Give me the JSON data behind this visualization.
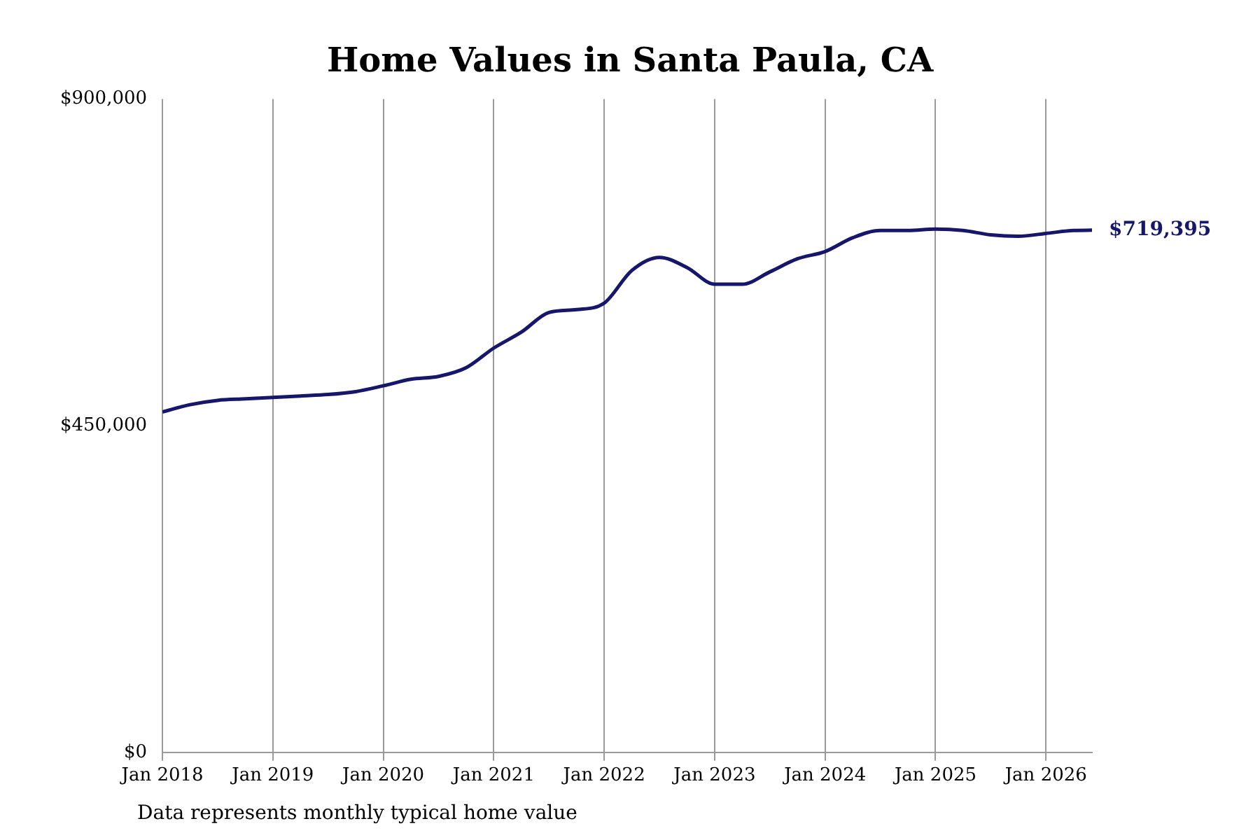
{
  "chart_data": {
    "type": "line",
    "title": "Home Values in Santa Paula, CA",
    "x": [
      "2018-01",
      "2018-04",
      "2018-07",
      "2018-10",
      "2019-01",
      "2019-04",
      "2019-07",
      "2019-10",
      "2020-01",
      "2020-04",
      "2020-07",
      "2020-10",
      "2021-01",
      "2021-04",
      "2021-07",
      "2021-10",
      "2022-01",
      "2022-04",
      "2022-07",
      "2022-10",
      "2023-01",
      "2023-04",
      "2023-07",
      "2023-10",
      "2024-01",
      "2024-04",
      "2024-07",
      "2024-10",
      "2025-01",
      "2025-04",
      "2025-07",
      "2025-10",
      "2026-01",
      "2026-04",
      "2026-06"
    ],
    "series": [
      {
        "color": "#16166b",
        "values": [
          469000,
          479000,
          485000,
          487000,
          489000,
          491000,
          493000,
          497000,
          505000,
          514000,
          518000,
          530000,
          557000,
          579000,
          606000,
          610000,
          619000,
          664000,
          682000,
          668000,
          645000,
          645000,
          662000,
          680000,
          690000,
          709000,
          719000,
          719000,
          721000,
          719000,
          713000,
          711000,
          715000,
          719000,
          719395
        ]
      }
    ],
    "xticks": [
      {
        "value": "2018-01",
        "label": "Jan 2018"
      },
      {
        "value": "2019-01",
        "label": "Jan 2019"
      },
      {
        "value": "2020-01",
        "label": "Jan 2020"
      },
      {
        "value": "2021-01",
        "label": "Jan 2021"
      },
      {
        "value": "2022-01",
        "label": "Jan 2022"
      },
      {
        "value": "2023-01",
        "label": "Jan 2023"
      },
      {
        "value": "2024-01",
        "label": "Jan 2024"
      },
      {
        "value": "2025-01",
        "label": "Jan 2025"
      },
      {
        "value": "2026-01",
        "label": "Jan 2026"
      }
    ],
    "xlim": [
      "2018-01",
      "2026-06"
    ],
    "ylim": [
      0,
      900000
    ],
    "yticks": [
      {
        "value": 0,
        "label": "$0"
      },
      {
        "value": 450000,
        "label": "$450,000"
      },
      {
        "value": 900000,
        "label": "$900,000"
      }
    ],
    "grid": "x",
    "legend": false,
    "marker": "none",
    "line_style": "solid",
    "annotations": [
      {
        "text": "$719,395",
        "x": "2026-06",
        "y": 719395
      },
      "Data represents monthly typical home value"
    ]
  }
}
